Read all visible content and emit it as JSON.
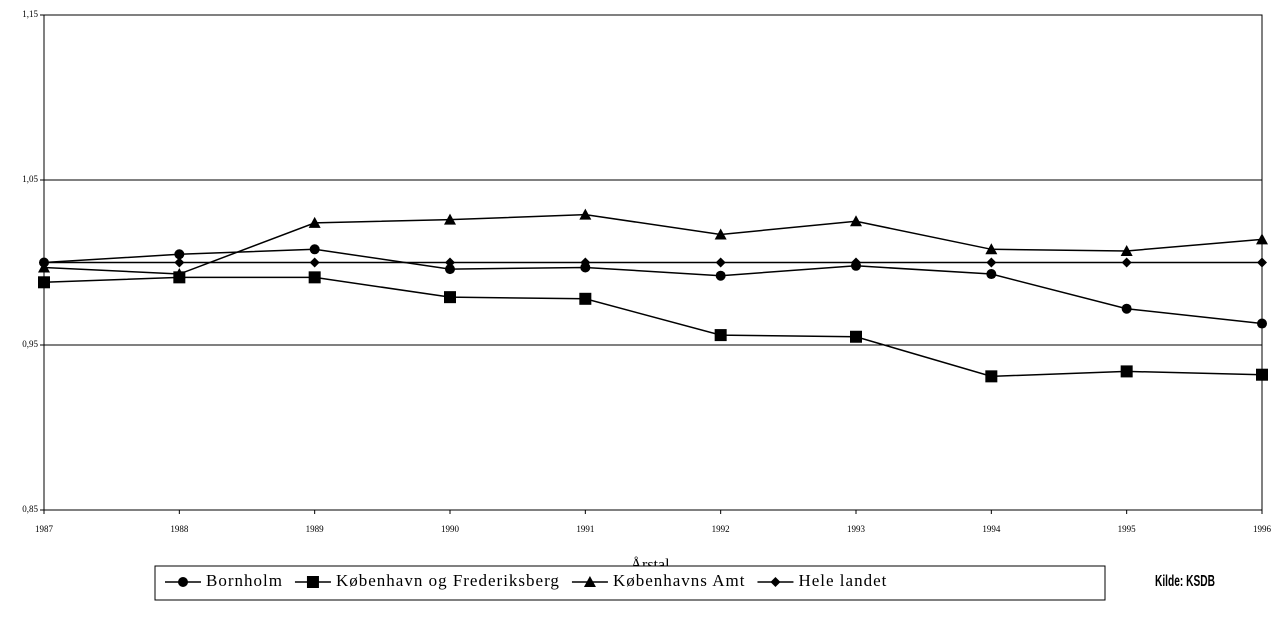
{
  "chart_data": {
    "type": "line",
    "x": [
      1987,
      1988,
      1989,
      1990,
      1991,
      1992,
      1993,
      1994,
      1995,
      1996
    ],
    "xlim": [
      1987,
      1996
    ],
    "xticks": [
      1987,
      1988,
      1989,
      1990,
      1991,
      1992,
      1993,
      1994,
      1995,
      1996
    ],
    "ylim": [
      0.85,
      1.15
    ],
    "yticks": [
      {
        "value": 0.85,
        "label": "0,85"
      },
      {
        "value": 0.95,
        "label": "0,95"
      },
      {
        "value": 1.05,
        "label": "1,05"
      },
      {
        "value": 1.15,
        "label": "1,15"
      }
    ],
    "grid": true,
    "xlabel": "Årstal",
    "source": "Kilde: KSDB",
    "series": [
      {
        "name": "Bornholm",
        "color": "#000000",
        "marker": "circle",
        "values": [
          1.0,
          1.005,
          1.008,
          0.996,
          0.997,
          0.992,
          0.998,
          0.993,
          0.972,
          0.963
        ]
      },
      {
        "name": "København og Frederiksberg",
        "color": "#000000",
        "marker": "square",
        "values": [
          0.988,
          0.991,
          0.991,
          0.979,
          0.978,
          0.956,
          0.955,
          0.931,
          0.934,
          0.932
        ]
      },
      {
        "name": "Københavns Amt",
        "color": "#000000",
        "marker": "triangle",
        "values": [
          0.997,
          0.993,
          1.024,
          1.026,
          1.029,
          1.017,
          1.025,
          1.008,
          1.007,
          1.014
        ]
      },
      {
        "name": "Hele landet",
        "color": "#000000",
        "marker": "diamond",
        "values": [
          1.0,
          1.0,
          1.0,
          1.0,
          1.0,
          1.0,
          1.0,
          1.0,
          1.0,
          1.0
        ]
      }
    ]
  }
}
